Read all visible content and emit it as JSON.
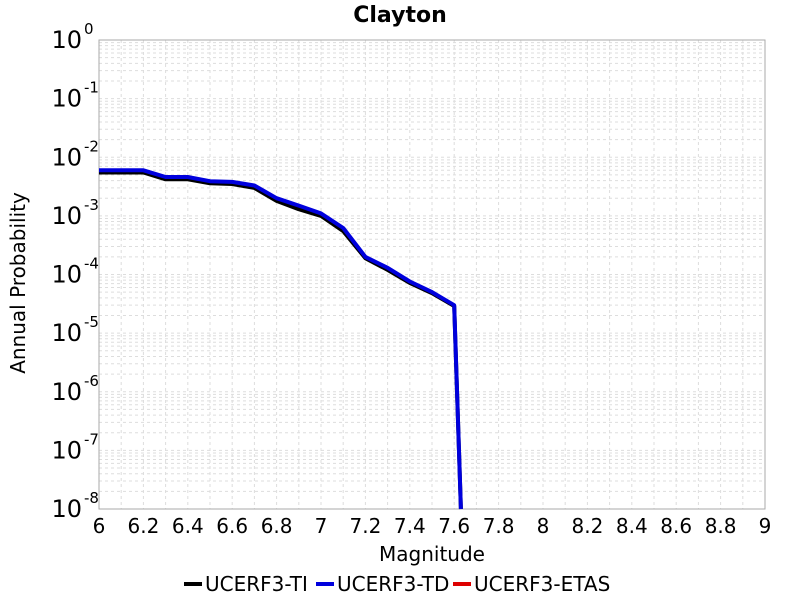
{
  "chart_data": {
    "type": "line",
    "title": "Clayton",
    "xlabel": "Magnitude",
    "ylabel": "Annual Probability",
    "xlim": [
      6,
      9
    ],
    "ylim": [
      1e-08,
      1
    ],
    "yscale": "log",
    "grid": true,
    "legend_position": "bottom",
    "x_ticks": [
      "6",
      "6.2",
      "6.4",
      "6.6",
      "6.8",
      "7",
      "7.2",
      "7.4",
      "7.6",
      "7.8",
      "8",
      "8.2",
      "8.4",
      "8.6",
      "8.8",
      "9"
    ],
    "y_tick_exponents": [
      "0",
      "-1",
      "-2",
      "-3",
      "-4",
      "-5",
      "-6",
      "-7",
      "-8"
    ],
    "y_tick_base": "10",
    "series": [
      {
        "name": "UCERF3-TI",
        "color": "#000000",
        "x": [
          6.0,
          6.1,
          6.2,
          6.3,
          6.4,
          6.5,
          6.6,
          6.7,
          6.8,
          6.9,
          7.0,
          7.1,
          7.2,
          7.3,
          7.4,
          7.5,
          7.6,
          7.63
        ],
        "y": [
          0.0055,
          0.0055,
          0.0055,
          0.0042,
          0.0042,
          0.0036,
          0.0035,
          0.003,
          0.0018,
          0.0013,
          0.001,
          0.00055,
          0.00019,
          0.00012,
          7.2e-05,
          4.8e-05,
          2.9e-05,
          1e-08
        ]
      },
      {
        "name": "UCERF3-TD",
        "color": "#0000dd",
        "x": [
          6.0,
          6.1,
          6.2,
          6.3,
          6.4,
          6.5,
          6.6,
          6.7,
          6.8,
          6.9,
          7.0,
          7.1,
          7.2,
          7.3,
          7.4,
          7.5,
          7.6,
          7.63
        ],
        "y": [
          0.006,
          0.006,
          0.006,
          0.0046,
          0.0046,
          0.0039,
          0.0038,
          0.0033,
          0.002,
          0.0015,
          0.0011,
          0.00062,
          0.0002,
          0.00013,
          7.6e-05,
          5e-05,
          3e-05,
          1e-08
        ]
      },
      {
        "name": "UCERF3-ETAS",
        "color": "#dd0000",
        "x": [],
        "y": []
      }
    ]
  }
}
